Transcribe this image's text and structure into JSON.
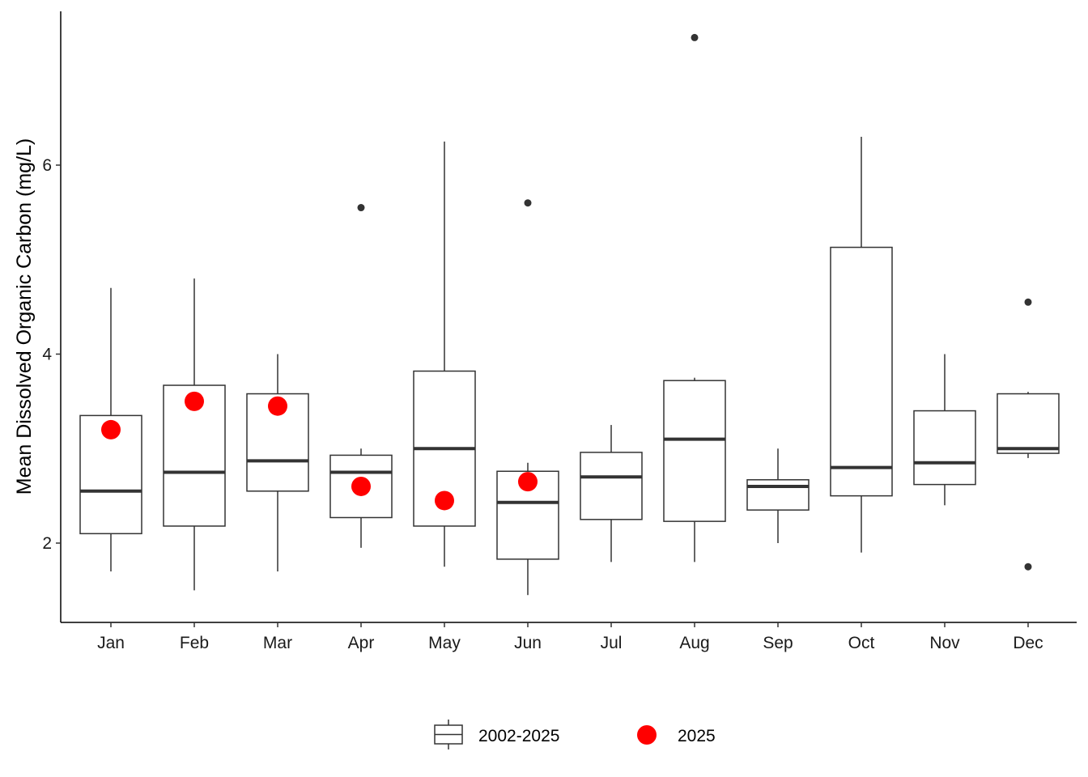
{
  "chart_data": {
    "type": "box",
    "title": "",
    "xlabel": "",
    "ylabel": "Mean Dissolved Organic Carbon (mg/L)",
    "ylim": [
      1.2,
      7.6
    ],
    "yticks": [
      2,
      4,
      6
    ],
    "grid": false,
    "legend_position": "bottom",
    "categories": [
      "Jan",
      "Feb",
      "Mar",
      "Apr",
      "May",
      "Jun",
      "Jul",
      "Aug",
      "Sep",
      "Oct",
      "Nov",
      "Dec"
    ],
    "series": [
      {
        "name": "2002-2025",
        "type": "box",
        "boxes": [
          {
            "category": "Jan",
            "whisker_low": 1.7,
            "q1": 2.1,
            "median": 2.55,
            "q3": 3.35,
            "whisker_high": 4.7,
            "outliers": []
          },
          {
            "category": "Feb",
            "whisker_low": 1.5,
            "q1": 2.18,
            "median": 2.75,
            "q3": 3.67,
            "whisker_high": 4.8,
            "outliers": []
          },
          {
            "category": "Mar",
            "whisker_low": 1.7,
            "q1": 2.55,
            "median": 2.87,
            "q3": 3.58,
            "whisker_high": 4.0,
            "outliers": []
          },
          {
            "category": "Apr",
            "whisker_low": 1.95,
            "q1": 2.27,
            "median": 2.75,
            "q3": 2.93,
            "whisker_high": 3.0,
            "outliers": [
              5.55
            ]
          },
          {
            "category": "May",
            "whisker_low": 1.75,
            "q1": 2.18,
            "median": 3.0,
            "q3": 3.82,
            "whisker_high": 6.25,
            "outliers": []
          },
          {
            "category": "Jun",
            "whisker_low": 1.45,
            "q1": 1.83,
            "median": 2.43,
            "q3": 2.76,
            "whisker_high": 2.85,
            "outliers": [
              5.6
            ]
          },
          {
            "category": "Jul",
            "whisker_low": 1.8,
            "q1": 2.25,
            "median": 2.7,
            "q3": 2.96,
            "whisker_high": 3.25,
            "outliers": []
          },
          {
            "category": "Aug",
            "whisker_low": 1.8,
            "q1": 2.23,
            "median": 3.1,
            "q3": 3.72,
            "whisker_high": 3.75,
            "outliers": [
              7.35
            ]
          },
          {
            "category": "Sep",
            "whisker_low": 2.0,
            "q1": 2.35,
            "median": 2.6,
            "q3": 2.67,
            "whisker_high": 3.0,
            "outliers": []
          },
          {
            "category": "Oct",
            "whisker_low": 1.9,
            "q1": 2.5,
            "median": 2.8,
            "q3": 5.13,
            "whisker_high": 6.3,
            "outliers": []
          },
          {
            "category": "Nov",
            "whisker_low": 2.4,
            "q1": 2.62,
            "median": 2.85,
            "q3": 3.4,
            "whisker_high": 4.0,
            "outliers": []
          },
          {
            "category": "Dec",
            "whisker_low": 2.9,
            "q1": 2.95,
            "median": 3.0,
            "q3": 3.58,
            "whisker_high": 3.6,
            "outliers": [
              4.55,
              1.75
            ]
          }
        ]
      },
      {
        "name": "2025",
        "type": "scatter",
        "color": "#ff0000",
        "points": [
          {
            "category": "Jan",
            "value": 3.2
          },
          {
            "category": "Feb",
            "value": 3.5
          },
          {
            "category": "Mar",
            "value": 3.45
          },
          {
            "category": "Apr",
            "value": 2.6
          },
          {
            "category": "May",
            "value": 2.45
          },
          {
            "category": "Jun",
            "value": 2.65
          }
        ]
      }
    ],
    "colors": {
      "box_outline": "#333333",
      "outlier": "#333333",
      "point": "#ff0000",
      "axis": "#000000"
    }
  }
}
